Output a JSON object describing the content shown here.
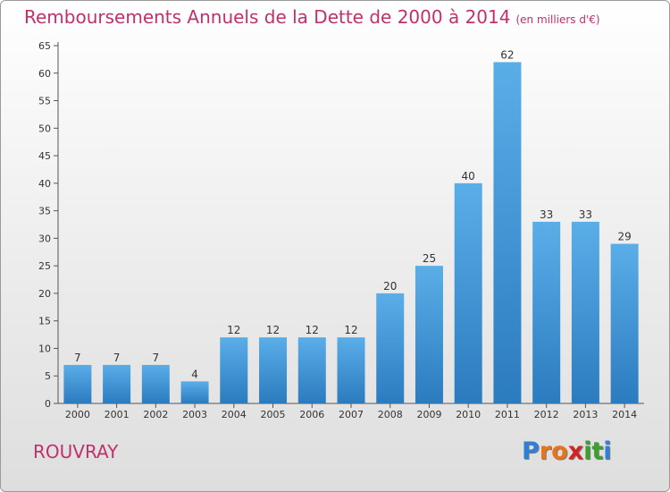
{
  "header": {
    "title": "Remboursements Annuels de la Dette de 2000 à 2014",
    "unit": "(en milliers d'€)"
  },
  "footer": {
    "commune": "ROUVRAY",
    "logo": [
      "P",
      "r",
      "o",
      "x",
      "i",
      "t",
      "i"
    ]
  },
  "colors": {
    "title": "#c0306f",
    "bar_top": "#5aaee8",
    "bar_bottom": "#2b7bbf",
    "logo": [
      "#2f7fd6",
      "#e8741a",
      "#e8741a",
      "#d22424",
      "#3aa12f",
      "#3aa12f",
      "#2f7fd6"
    ]
  },
  "chart_data": {
    "type": "bar",
    "categories": [
      "2000",
      "2001",
      "2002",
      "2003",
      "2004",
      "2005",
      "2006",
      "2007",
      "2008",
      "2009",
      "2010",
      "2011",
      "2012",
      "2013",
      "2014"
    ],
    "values": [
      7,
      7,
      7,
      4,
      12,
      12,
      12,
      12,
      20,
      25,
      40,
      62,
      33,
      33,
      29
    ],
    "title": "Remboursements Annuels de la Dette de 2000 à 2014",
    "ylim": [
      0,
      65
    ],
    "yticks": [
      0,
      5,
      10,
      15,
      20,
      25,
      30,
      35,
      40,
      45,
      50,
      55,
      60,
      65
    ],
    "grid": false,
    "data_labels": true
  }
}
